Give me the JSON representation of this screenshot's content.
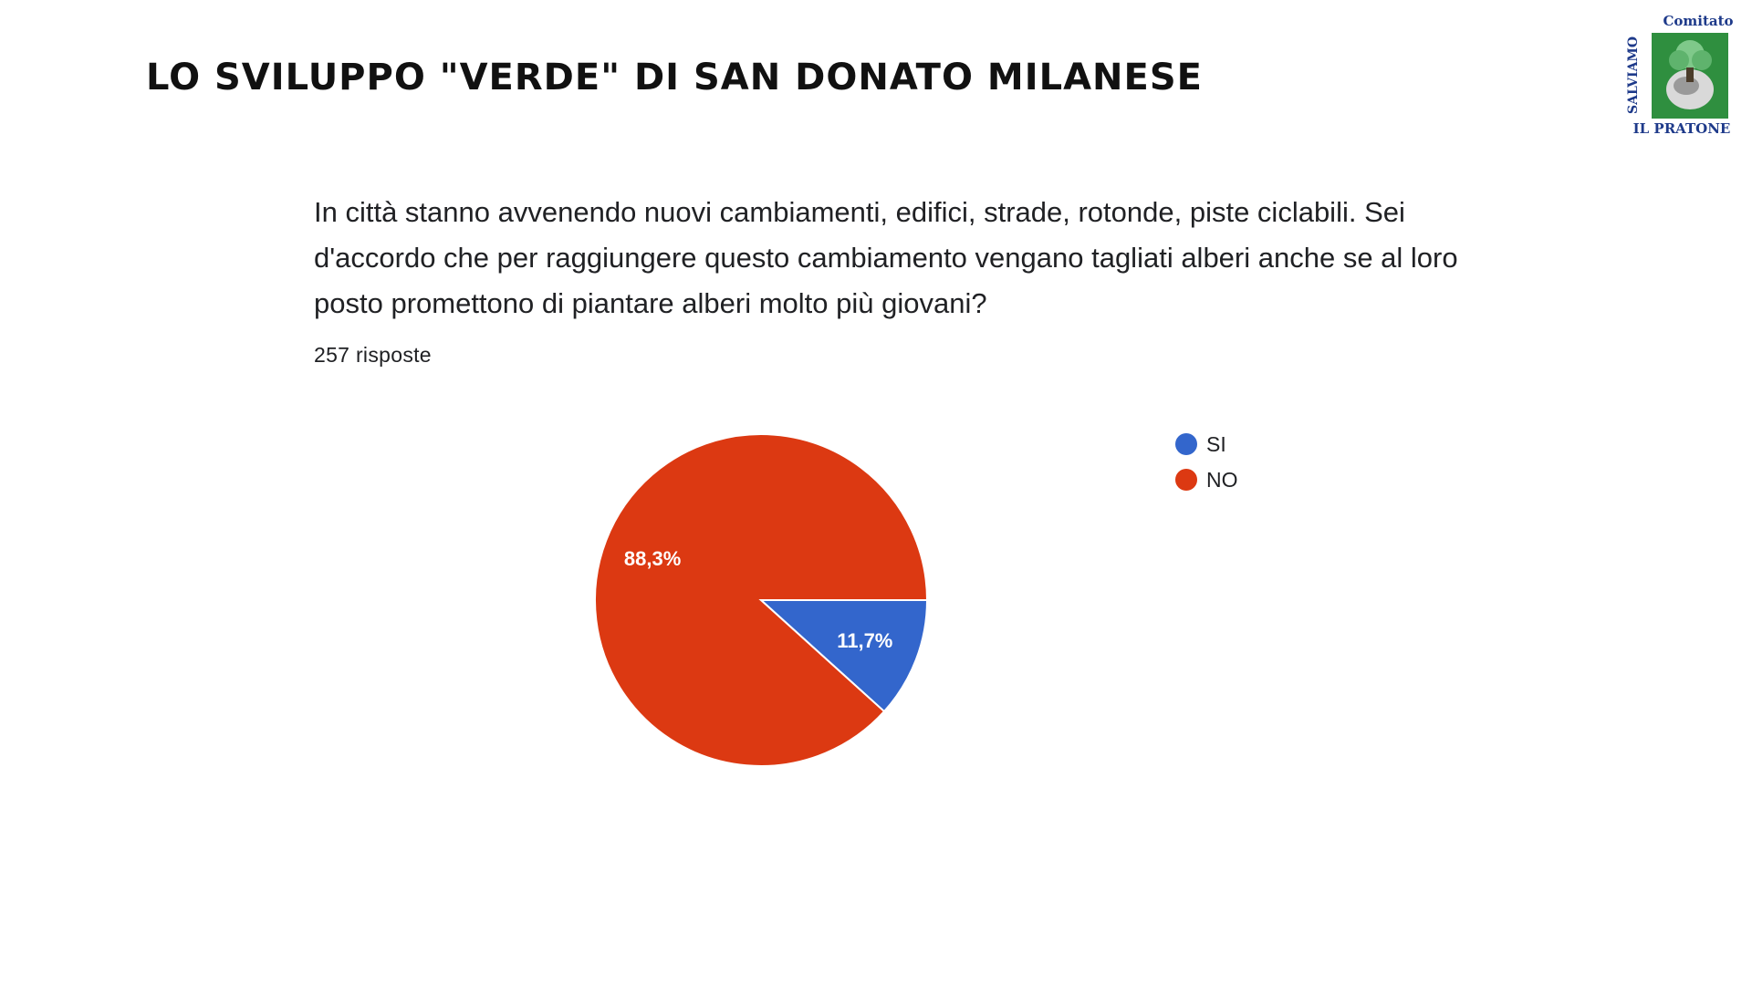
{
  "header": {
    "title": "Lo sviluppo \"verde\" di San Donato Milanese"
  },
  "logo": {
    "top_text": "Comitato",
    "side_text": "SALVIAMO",
    "bottom_text": "IL PRATONE",
    "color": "#1e3a8a",
    "emblem_color": "#2f8f3f"
  },
  "survey": {
    "question": "In città stanno avvenendo nuovi cambiamenti, edifici, strade, rotonde, piste ciclabili. Sei d'accordo che per raggiungere questo cambiamento vengano tagliati alberi anche se al loro posto promettono di piantare alberi molto più giovani?",
    "response_count": "257 risposte"
  },
  "chart_data": {
    "type": "pie",
    "title": "",
    "slices": [
      {
        "label": "SI",
        "value": 11.7,
        "display": "11,7%",
        "color": "#3366cc"
      },
      {
        "label": "NO",
        "value": 88.3,
        "display": "88,3%",
        "color": "#dc3912"
      }
    ],
    "legend_position": "right"
  }
}
